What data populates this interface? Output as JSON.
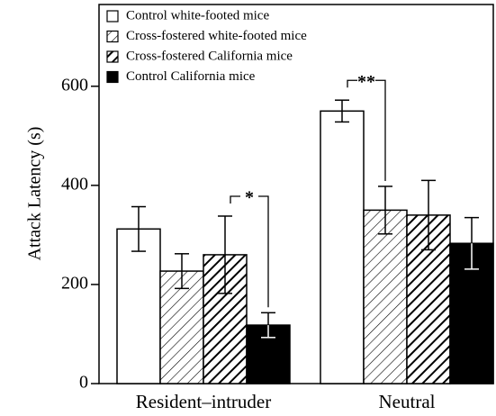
{
  "chart_data": {
    "type": "bar",
    "ylabel": "Attack Latency (s)",
    "categories": [
      "Resident–intruder",
      "Neutral"
    ],
    "series": [
      {
        "name": "Control white-footed mice",
        "fill": "white",
        "values": [
          312,
          550
        ],
        "errors": [
          45,
          22
        ]
      },
      {
        "name": "Cross-fostered white-footed mice",
        "fill": "hatch",
        "values": [
          227,
          350
        ],
        "errors": [
          35,
          48
        ]
      },
      {
        "name": "Cross-fostered California mice",
        "fill": "hatch-bold",
        "values": [
          260,
          340
        ],
        "errors": [
          78,
          70
        ]
      },
      {
        "name": "Control California mice",
        "fill": "black",
        "values": [
          118,
          283
        ],
        "errors": [
          25,
          52
        ]
      }
    ],
    "annotations": [
      {
        "text": "*",
        "group": 0,
        "from": 2,
        "to": 3
      },
      {
        "text": "**",
        "group": 1,
        "from": 0,
        "to": 1
      }
    ],
    "ylim": [
      0,
      765
    ],
    "yticks": [
      0,
      200,
      400,
      600
    ],
    "legend": "upper left"
  }
}
